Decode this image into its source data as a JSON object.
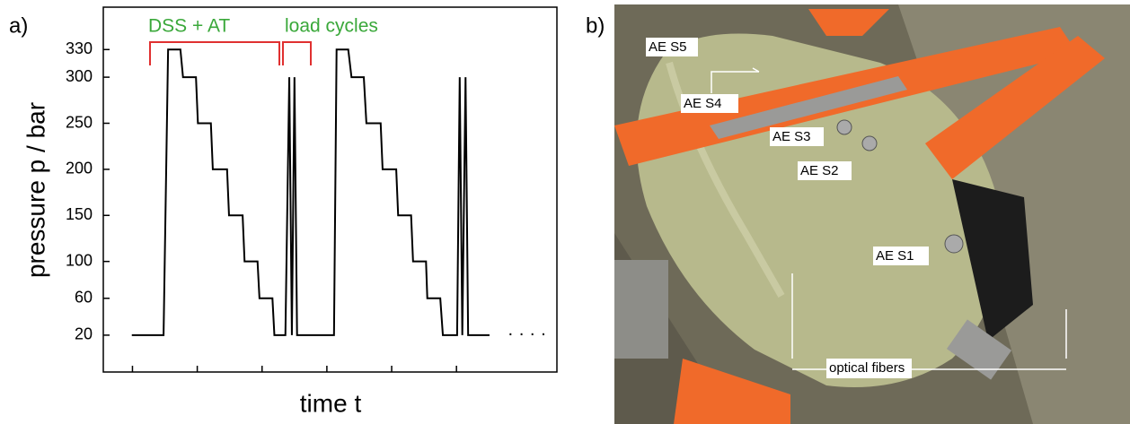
{
  "panels": {
    "a": "a)",
    "b": "b)"
  },
  "chart_data": {
    "type": "line",
    "xlabel": "time t",
    "ylabel": "pressure p / bar",
    "annotations": [
      "DSS + AT",
      "load cycles",
      "· · · ·"
    ],
    "color": "#000000",
    "x": [
      0.44,
      0.93,
      1.0,
      1.19,
      1.23,
      1.43,
      1.46,
      1.66,
      1.69,
      1.91,
      1.94,
      2.15,
      2.18,
      2.38,
      2.41,
      2.61,
      2.64,
      2.81,
      2.87,
      2.91,
      2.95,
      2.99,
      3.56,
      3.6,
      3.78,
      3.83,
      4.02,
      4.06,
      4.28,
      4.31,
      4.52,
      4.55,
      4.75,
      4.78,
      4.98,
      5.0,
      5.2,
      5.24,
      5.46,
      5.5,
      5.54,
      5.59,
      5.63,
      5.96
    ],
    "values": [
      20,
      20,
      330,
      330,
      300,
      300,
      250,
      250,
      200,
      200,
      150,
      150,
      100,
      100,
      60,
      60,
      20,
      20,
      300,
      20,
      300,
      20,
      20,
      330,
      330,
      300,
      300,
      250,
      250,
      200,
      200,
      150,
      150,
      100,
      100,
      60,
      60,
      20,
      20,
      300,
      20,
      300,
      20,
      20
    ],
    "xlim": [
      0,
      7
    ],
    "xticks": [
      0.45,
      1.45,
      2.45,
      3.45,
      4.45,
      5.45
    ],
    "ylim": [
      -20,
      376
    ],
    "yticks": [
      20,
      60,
      100,
      150,
      200,
      250,
      300,
      330
    ]
  },
  "photo": {
    "labels": [
      "AE S5",
      "AE S4",
      "AE S3",
      "AE S2",
      "AE S1",
      "optical fibers"
    ]
  }
}
